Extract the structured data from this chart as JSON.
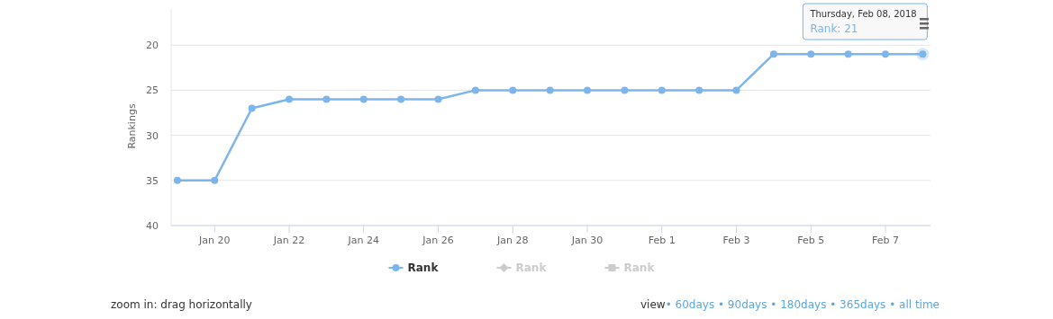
{
  "chart_data": {
    "type": "line",
    "ylabel": "Rankings",
    "x": [
      "2018-01-19",
      "2018-01-20",
      "2018-01-21",
      "2018-01-22",
      "2018-01-23",
      "2018-01-24",
      "2018-01-25",
      "2018-01-26",
      "2018-01-27",
      "2018-01-28",
      "2018-01-29",
      "2018-01-30",
      "2018-01-31",
      "2018-02-01",
      "2018-02-02",
      "2018-02-03",
      "2018-02-04",
      "2018-02-05",
      "2018-02-06",
      "2018-02-07",
      "2018-02-08"
    ],
    "series": [
      {
        "name": "Rank",
        "color": "#7cb5ec",
        "values": [
          35,
          35,
          27,
          26,
          26,
          26,
          26,
          26,
          25,
          25,
          25,
          25,
          25,
          25,
          25,
          25,
          21,
          21,
          21,
          21,
          21
        ]
      },
      {
        "name": "Rank",
        "color": "#cccccc",
        "marker": "diamond",
        "values": [
          null,
          null,
          null,
          null,
          null,
          null,
          null,
          null,
          null,
          null,
          null,
          null,
          null,
          null,
          null,
          null,
          null,
          null,
          null,
          null,
          null
        ]
      },
      {
        "name": "Rank",
        "color": "#cccccc",
        "marker": "square",
        "values": [
          null,
          null,
          null,
          null,
          null,
          null,
          null,
          null,
          null,
          null,
          null,
          null,
          null,
          null,
          null,
          null,
          null,
          null,
          null,
          null,
          null
        ]
      }
    ],
    "xlim": [
      "2018-01-18T20:00",
      "2018-02-08T05:00"
    ],
    "xticks": [
      {
        "value": "2018-01-20",
        "label": "Jan 20"
      },
      {
        "value": "2018-01-22",
        "label": "Jan 22"
      },
      {
        "value": "2018-01-24",
        "label": "Jan 24"
      },
      {
        "value": "2018-01-26",
        "label": "Jan 26"
      },
      {
        "value": "2018-01-28",
        "label": "Jan 28"
      },
      {
        "value": "2018-01-30",
        "label": "Jan 30"
      },
      {
        "value": "2018-02-01",
        "label": "Feb 1"
      },
      {
        "value": "2018-02-03",
        "label": "Feb 3"
      },
      {
        "value": "2018-02-05",
        "label": "Feb 5"
      },
      {
        "value": "2018-02-07",
        "label": "Feb 7"
      }
    ],
    "ylim": [
      40,
      16
    ],
    "yticks": [
      20,
      25,
      30,
      35,
      40
    ],
    "grid": "y",
    "marker": "circle",
    "line_style": "solid",
    "legend": "bottom",
    "annotations": [
      {
        "text": "Thursday, Feb 08, 2018\nRank: 21",
        "x": "2018-02-08",
        "y": 21
      },
      "zoom in: drag horizontally",
      "view• 60days • 90days • 180days • 365days • all time"
    ]
  }
}
